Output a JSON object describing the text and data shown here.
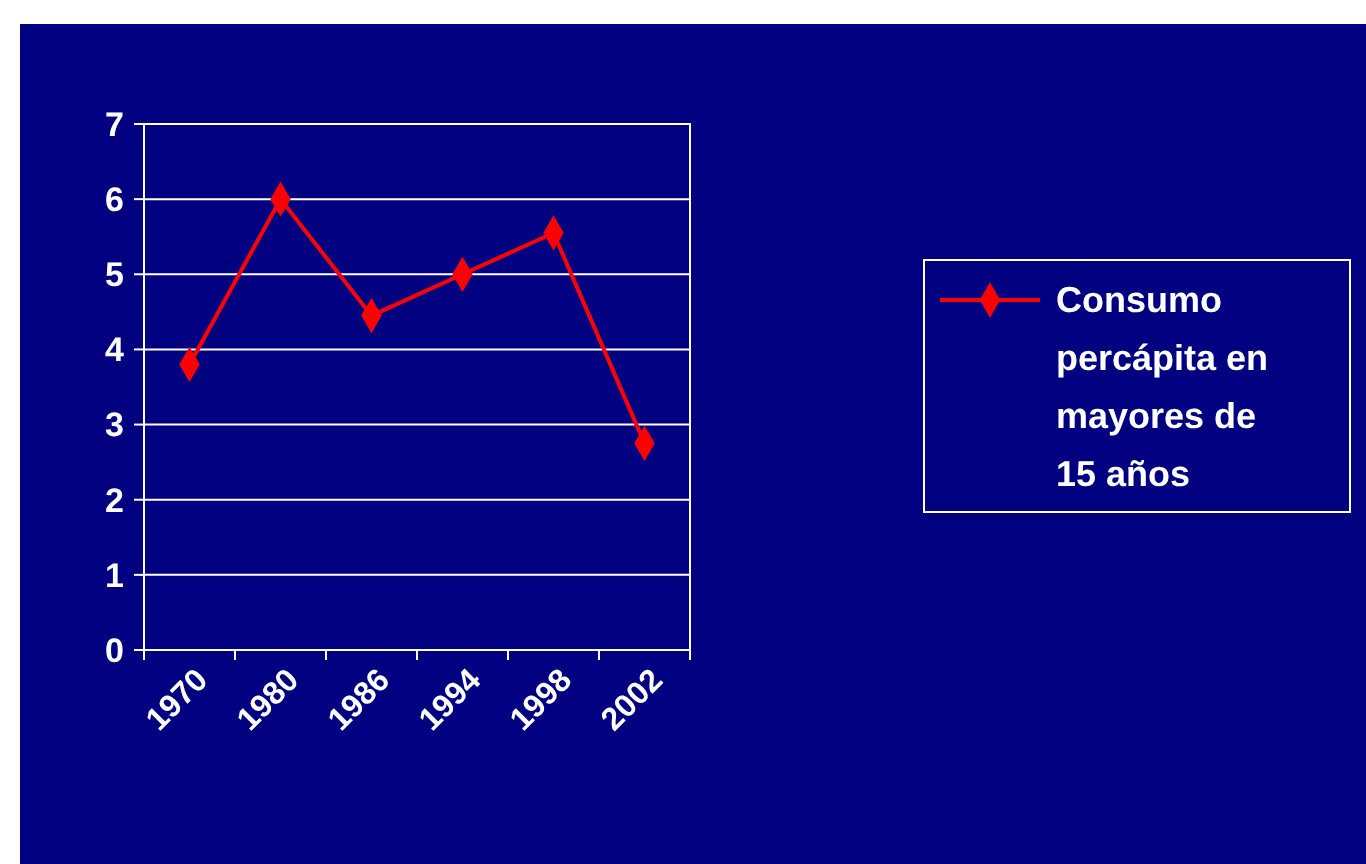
{
  "chart_data": {
    "type": "line",
    "categories": [
      "1970",
      "1980",
      "1986",
      "1994",
      "1998",
      "2002"
    ],
    "series": [
      {
        "name": "Consumo percápita en mayores de 15 años",
        "color": "#ff0000",
        "values": [
          3.8,
          6.0,
          4.45,
          5.0,
          5.55,
          2.75
        ]
      }
    ],
    "ylim": [
      0,
      7
    ],
    "yticks": [
      0,
      1,
      2,
      3,
      4,
      5,
      6,
      7
    ],
    "grid": "y",
    "legend": "right",
    "marker": "diamond",
    "line_style": "solid"
  }
}
